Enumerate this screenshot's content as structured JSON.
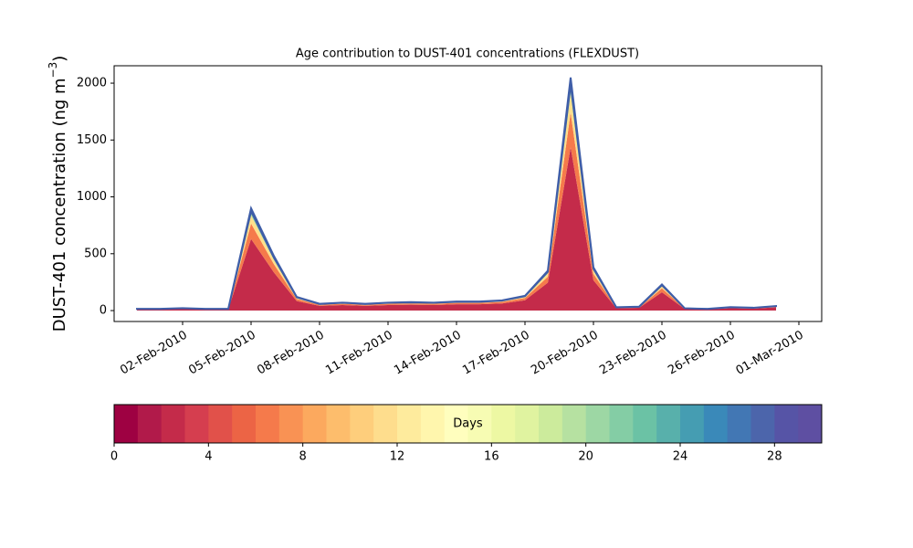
{
  "chart_data": {
    "type": "stackedarea",
    "title": "Age contribution to DUST-401 concentrations (FLEXDUST)",
    "ylabel": [
      "DUST-401 concentration (ng m",
      "−3",
      ")"
    ],
    "x": [
      "2010-01-31",
      "2010-02-01",
      "2010-02-02",
      "2010-02-03",
      "2010-02-04",
      "2010-02-05",
      "2010-02-06",
      "2010-02-07",
      "2010-02-08",
      "2010-02-09",
      "2010-02-10",
      "2010-02-11",
      "2010-02-12",
      "2010-02-13",
      "2010-02-14",
      "2010-02-15",
      "2010-02-16",
      "2010-02-17",
      "2010-02-18",
      "2010-02-19",
      "2010-02-20",
      "2010-02-21",
      "2010-02-22",
      "2010-02-23",
      "2010-02-24",
      "2010-02-25",
      "2010-02-26",
      "2010-02-27",
      "2010-02-28"
    ],
    "series": [
      {
        "color": "#c42b4a",
        "values": [
          10,
          10,
          14,
          10,
          10,
          630,
          336,
          84,
          42,
          49,
          42,
          49,
          52,
          49,
          56,
          56,
          63,
          91,
          245,
          1435,
          266,
          21,
          24,
          161,
          14,
          10,
          21,
          17,
          28
        ]
      },
      {
        "color": "#f57a4b",
        "values": [
          2,
          2,
          3,
          2,
          2,
          135,
          72,
          18,
          9,
          11,
          9,
          11,
          11,
          11,
          12,
          12,
          14,
          20,
          53,
          308,
          57,
          5,
          5,
          35,
          3,
          2,
          5,
          4,
          6
        ]
      },
      {
        "color": "#fee08b",
        "values": [
          1,
          1,
          2,
          1,
          1,
          72,
          38,
          10,
          5,
          6,
          5,
          6,
          6,
          6,
          6,
          6,
          7,
          10,
          28,
          164,
          30,
          2,
          3,
          18,
          2,
          1,
          2,
          2,
          3
        ]
      },
      {
        "color": "#99d5a4",
        "values": [
          1,
          1,
          1,
          1,
          1,
          36,
          19,
          5,
          2,
          3,
          2,
          3,
          3,
          3,
          3,
          3,
          4,
          5,
          14,
          82,
          15,
          1,
          1,
          9,
          1,
          1,
          1,
          1,
          2
        ]
      },
      {
        "color": "#3f5ea8",
        "values": [
          1,
          1,
          1,
          1,
          1,
          27,
          15,
          3,
          2,
          1,
          2,
          1,
          3,
          1,
          3,
          3,
          2,
          4,
          10,
          61,
          12,
          1,
          2,
          7,
          0,
          1,
          1,
          1,
          1
        ]
      }
    ],
    "xlim": [
      "2010-01-30",
      "2010-03-02"
    ],
    "xticks": [
      {
        "value": "2010-02-02",
        "label": "02-Feb-2010"
      },
      {
        "value": "2010-02-05",
        "label": "05-Feb-2010"
      },
      {
        "value": "2010-02-08",
        "label": "08-Feb-2010"
      },
      {
        "value": "2010-02-11",
        "label": "11-Feb-2010"
      },
      {
        "value": "2010-02-14",
        "label": "14-Feb-2010"
      },
      {
        "value": "2010-02-17",
        "label": "17-Feb-2010"
      },
      {
        "value": "2010-02-20",
        "label": "20-Feb-2010"
      },
      {
        "value": "2010-02-23",
        "label": "23-Feb-2010"
      },
      {
        "value": "2010-02-26",
        "label": "26-Feb-2010"
      },
      {
        "value": "2010-03-01",
        "label": "01-Mar-2010"
      }
    ],
    "ylim": [
      -96,
      2153
    ],
    "yticks": [
      0,
      500,
      1000,
      1500,
      2000
    ],
    "colorbar": {
      "label": "Days",
      "lim": [
        0,
        30
      ],
      "ticks": [
        0,
        4,
        8,
        12,
        16,
        20,
        24,
        28
      ],
      "colors": [
        "#9e0142",
        "#b11a4a",
        "#c42b4a",
        "#d53e4f",
        "#e1514a",
        "#ec6445",
        "#f57a4b",
        "#f99254",
        "#fca95e",
        "#fdbd6c",
        "#fece7c",
        "#fedd8d",
        "#feeb9d",
        "#fff6ad",
        "#fffebe",
        "#f7fcb3",
        "#edf8a3",
        "#e0f3a0",
        "#cceb9c",
        "#b6e1a1",
        "#9dd7a4",
        "#84cda5",
        "#6bc2a5",
        "#58b0ab",
        "#459db2",
        "#3a89b9",
        "#4277b4",
        "#4c65ab",
        "#5654a6",
        "#5e4fa2"
      ]
    }
  }
}
